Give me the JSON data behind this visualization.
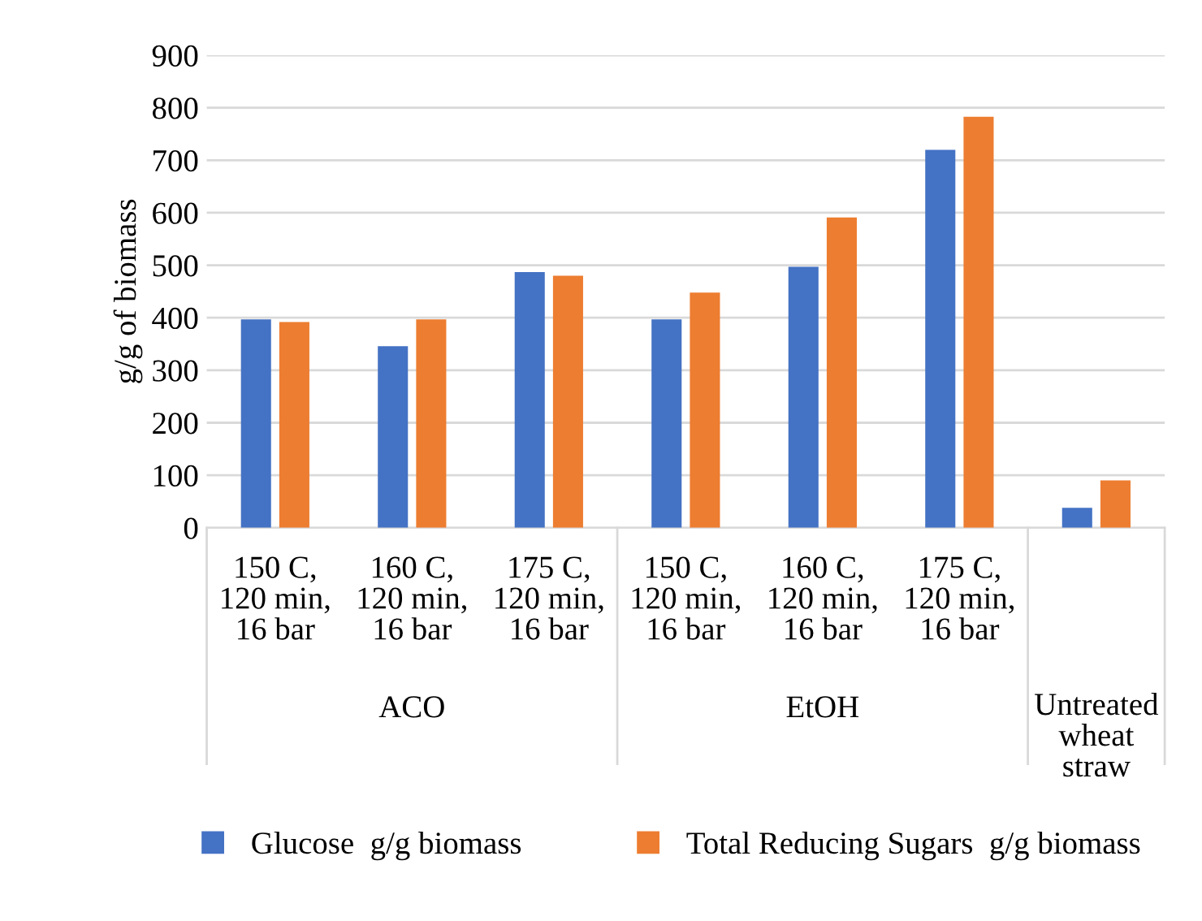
{
  "chart_data": {
    "type": "bar",
    "ylabel": "g/g of biomass",
    "categories": [
      "150 C,\n120 min,\n16 bar",
      "160 C,\n120 min,\n16 bar",
      "175 C,\n120 min,\n16 bar",
      "150 C,\n120 min,\n16 bar",
      "160 C,\n120 min,\n16 bar",
      "175 C,\n120 min,\n16 bar",
      null
    ],
    "series": [
      {
        "name": "Glucose  g/g biomass",
        "color": "#4472c4",
        "values": [
          397,
          346,
          487,
          397,
          497,
          720,
          38
        ]
      },
      {
        "name": "Total Reducing Sugars  g/g biomass",
        "color": "#ed7d31",
        "values": [
          392,
          397,
          480,
          448,
          591,
          783,
          90
        ]
      }
    ],
    "annotations": [
      "ACO",
      "EtOH",
      "Untreated\nwheat\nstraw"
    ],
    "ylim": [
      0,
      900
    ],
    "yticks": [
      0,
      100,
      200,
      300,
      400,
      500,
      600,
      700,
      800,
      900
    ],
    "grid": "y",
    "legend": "bottom"
  }
}
